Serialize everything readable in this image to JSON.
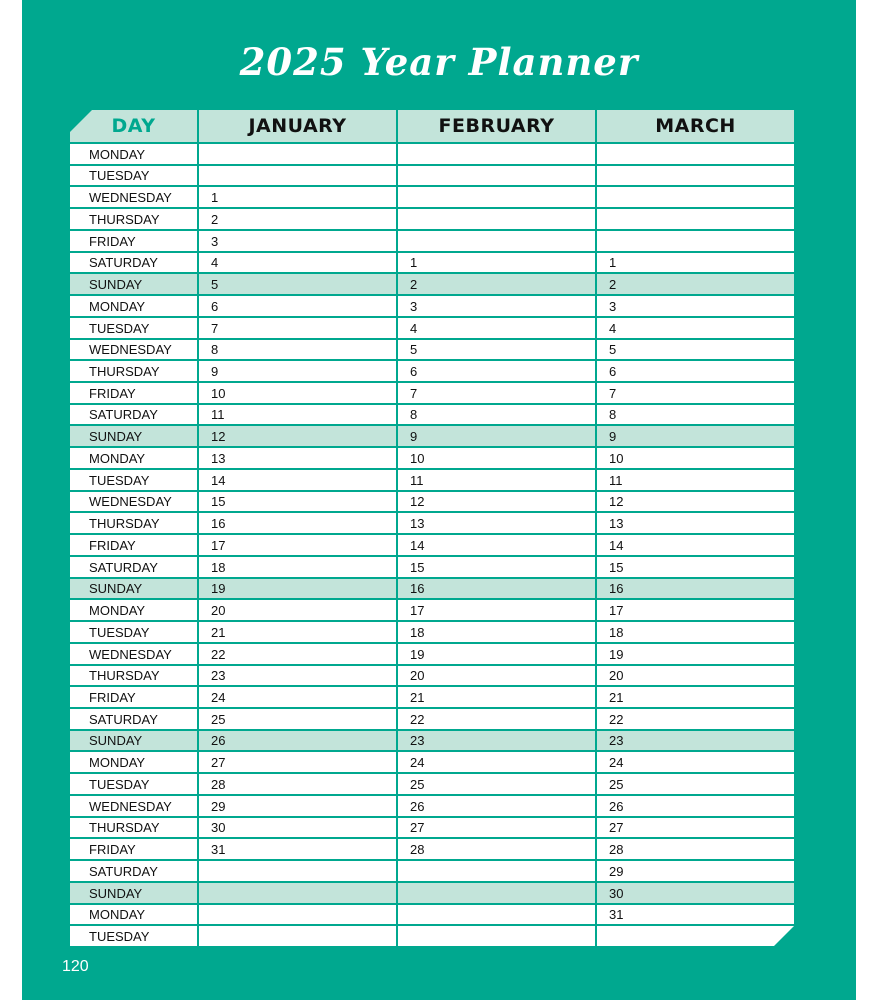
{
  "title": "2025 Year Planner",
  "page_number": "120",
  "colors": {
    "page": "#00a88f",
    "header_fill": "#c3e4da",
    "sunday_fill": "#c3e4da",
    "day_header_text": "#00a88f"
  },
  "headers": [
    "DAY",
    "JANUARY",
    "FEBRUARY",
    "MARCH"
  ],
  "rows": [
    {
      "day": "MONDAY",
      "jan": "",
      "feb": "",
      "mar": ""
    },
    {
      "day": "TUESDAY",
      "jan": "",
      "feb": "",
      "mar": ""
    },
    {
      "day": "WEDNESDAY",
      "jan": "1",
      "feb": "",
      "mar": ""
    },
    {
      "day": "THURSDAY",
      "jan": "2",
      "feb": "",
      "mar": ""
    },
    {
      "day": "FRIDAY",
      "jan": "3",
      "feb": "",
      "mar": ""
    },
    {
      "day": "SATURDAY",
      "jan": "4",
      "feb": "1",
      "mar": "1"
    },
    {
      "day": "SUNDAY",
      "jan": "5",
      "feb": "2",
      "mar": "2"
    },
    {
      "day": "MONDAY",
      "jan": "6",
      "feb": "3",
      "mar": "3"
    },
    {
      "day": "TUESDAY",
      "jan": "7",
      "feb": "4",
      "mar": "4"
    },
    {
      "day": "WEDNESDAY",
      "jan": "8",
      "feb": "5",
      "mar": "5"
    },
    {
      "day": "THURSDAY",
      "jan": "9",
      "feb": "6",
      "mar": "6"
    },
    {
      "day": "FRIDAY",
      "jan": "10",
      "feb": "7",
      "mar": "7"
    },
    {
      "day": "SATURDAY",
      "jan": "11",
      "feb": "8",
      "mar": "8"
    },
    {
      "day": "SUNDAY",
      "jan": "12",
      "feb": "9",
      "mar": "9"
    },
    {
      "day": "MONDAY",
      "jan": "13",
      "feb": "10",
      "mar": "10"
    },
    {
      "day": "TUESDAY",
      "jan": "14",
      "feb": "11",
      "mar": "11"
    },
    {
      "day": "WEDNESDAY",
      "jan": "15",
      "feb": "12",
      "mar": "12"
    },
    {
      "day": "THURSDAY",
      "jan": "16",
      "feb": "13",
      "mar": "13"
    },
    {
      "day": "FRIDAY",
      "jan": "17",
      "feb": "14",
      "mar": "14"
    },
    {
      "day": "SATURDAY",
      "jan": "18",
      "feb": "15",
      "mar": "15"
    },
    {
      "day": "SUNDAY",
      "jan": "19",
      "feb": "16",
      "mar": "16"
    },
    {
      "day": "MONDAY",
      "jan": "20",
      "feb": "17",
      "mar": "17"
    },
    {
      "day": "TUESDAY",
      "jan": "21",
      "feb": "18",
      "mar": "18"
    },
    {
      "day": "WEDNESDAY",
      "jan": "22",
      "feb": "19",
      "mar": "19"
    },
    {
      "day": "THURSDAY",
      "jan": "23",
      "feb": "20",
      "mar": "20"
    },
    {
      "day": "FRIDAY",
      "jan": "24",
      "feb": "21",
      "mar": "21"
    },
    {
      "day": "SATURDAY",
      "jan": "25",
      "feb": "22",
      "mar": "22"
    },
    {
      "day": "SUNDAY",
      "jan": "26",
      "feb": "23",
      "mar": "23"
    },
    {
      "day": "MONDAY",
      "jan": "27",
      "feb": "24",
      "mar": "24"
    },
    {
      "day": "TUESDAY",
      "jan": "28",
      "feb": "25",
      "mar": "25"
    },
    {
      "day": "WEDNESDAY",
      "jan": "29",
      "feb": "26",
      "mar": "26"
    },
    {
      "day": "THURSDAY",
      "jan": "30",
      "feb": "27",
      "mar": "27"
    },
    {
      "day": "FRIDAY",
      "jan": "31",
      "feb": "28",
      "mar": "28"
    },
    {
      "day": "SATURDAY",
      "jan": "",
      "feb": "",
      "mar": "29"
    },
    {
      "day": "SUNDAY",
      "jan": "",
      "feb": "",
      "mar": "30"
    },
    {
      "day": "MONDAY",
      "jan": "",
      "feb": "",
      "mar": "31"
    },
    {
      "day": "TUESDAY",
      "jan": "",
      "feb": "",
      "mar": ""
    }
  ]
}
